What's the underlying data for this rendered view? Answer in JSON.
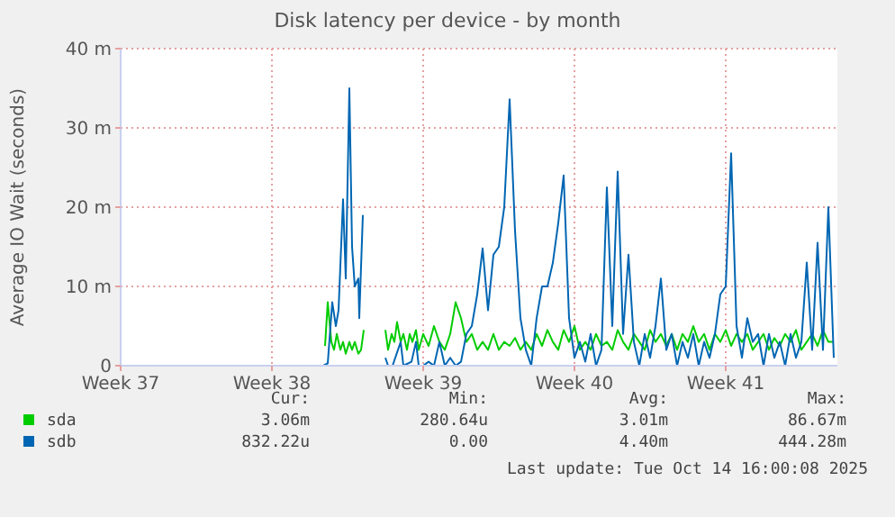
{
  "chart_data": {
    "type": "line",
    "title": "Disk latency per device - by month",
    "ylabel": "Average IO Wait (seconds)",
    "xlim": [
      "2025-09-08T00:00",
      "2025-10-11T04:00"
    ],
    "xticks": [
      {
        "value": "2025-09-08",
        "label": "Week 37"
      },
      {
        "value": "2025-09-15",
        "label": "Week 38"
      },
      {
        "value": "2025-09-22",
        "label": "Week 39"
      },
      {
        "value": "2025-09-29",
        "label": "Week 40"
      },
      {
        "value": "2025-10-06",
        "label": "Week 41"
      }
    ],
    "ylim": [
      0,
      40
    ],
    "yticks": [
      0,
      {
        "value": 10,
        "label": "10 m"
      },
      {
        "value": 20,
        "label": "20 m"
      },
      {
        "value": 30,
        "label": "30 m"
      },
      {
        "value": 40,
        "label": "40 m"
      }
    ],
    "grid": true,
    "legend": "bottom",
    "line_style": "solid",
    "marker": "none",
    "annotations": [
      "Cur:",
      "Min:",
      "Avg:",
      "Max:",
      "3.06m",
      "280.64u",
      "3.01m",
      "86.67m",
      "832.22u",
      "0.00",
      "4.40m",
      "444.28m",
      "Last update: Tue Oct 14 16:00:08 2025"
    ],
    "series": [
      {
        "name": "sda",
        "color": "#00cc00",
        "x": [
          "2025-09-17T11:00",
          "2025-09-17T14:00",
          "2025-09-17T18:00",
          "2025-09-17T21:00",
          "2025-09-18T00:00",
          "2025-09-18T04:00",
          "2025-09-18T07:00",
          "2025-09-18T10:00",
          "2025-09-18T14:00",
          "2025-09-18T17:00",
          "2025-09-18T20:00",
          "2025-09-19T00:00",
          "2025-09-19T03:00",
          "2025-09-19T06:00",
          "2025-09-19T18:00",
          "2025-09-20T06:00",
          "2025-09-20T09:00",
          "2025-09-20T13:00",
          "2025-09-20T16:00",
          "2025-09-20T19:00",
          "2025-09-20T23:00",
          "2025-09-21T02:00",
          "2025-09-21T06:00",
          "2025-09-21T09:00",
          "2025-09-21T12:00",
          "2025-09-21T16:00",
          "2025-09-21T19:00",
          "2025-09-22T00:00",
          "2025-09-22T06:00",
          "2025-09-22T12:00",
          "2025-09-22T18:00",
          "2025-09-23T00:00",
          "2025-09-23T06:00",
          "2025-09-23T12:00",
          "2025-09-23T18:00",
          "2025-09-24T00:00",
          "2025-09-24T06:00",
          "2025-09-24T12:00",
          "2025-09-24T18:00",
          "2025-09-25T00:00",
          "2025-09-25T06:00",
          "2025-09-25T12:00",
          "2025-09-25T18:00",
          "2025-09-26T00:00",
          "2025-09-26T06:00",
          "2025-09-26T12:00",
          "2025-09-26T18:00",
          "2025-09-27T00:00",
          "2025-09-27T06:00",
          "2025-09-27T12:00",
          "2025-09-27T18:00",
          "2025-09-28T00:00",
          "2025-09-28T06:00",
          "2025-09-28T12:00",
          "2025-09-28T18:00",
          "2025-09-29T00:00",
          "2025-09-29T06:00",
          "2025-09-29T12:00",
          "2025-09-29T18:00",
          "2025-09-30T00:00",
          "2025-09-30T06:00",
          "2025-09-30T12:00",
          "2025-09-30T18:00",
          "2025-10-01T00:00",
          "2025-10-01T06:00",
          "2025-10-01T12:00",
          "2025-10-01T18:00",
          "2025-10-02T00:00",
          "2025-10-02T06:00",
          "2025-10-02T12:00",
          "2025-10-02T18:00",
          "2025-10-03T00:00",
          "2025-10-03T06:00",
          "2025-10-03T12:00",
          "2025-10-03T18:00",
          "2025-10-04T00:00",
          "2025-10-04T06:00",
          "2025-10-04T12:00",
          "2025-10-04T18:00",
          "2025-10-05T00:00",
          "2025-10-05T06:00",
          "2025-10-05T12:00",
          "2025-10-05T18:00",
          "2025-10-06T00:00",
          "2025-10-06T06:00",
          "2025-10-06T12:00",
          "2025-10-06T18:00",
          "2025-10-07T00:00",
          "2025-10-07T06:00",
          "2025-10-07T12:00",
          "2025-10-07T18:00",
          "2025-10-08T00:00",
          "2025-10-08T06:00",
          "2025-10-08T12:00",
          "2025-10-08T18:00",
          "2025-10-09T00:00",
          "2025-10-09T06:00",
          "2025-10-09T12:00",
          "2025-10-09T18:00",
          "2025-10-10T00:00",
          "2025-10-10T06:00",
          "2025-10-10T12:00",
          "2025-10-10T18:00",
          "2025-10-11T00:00"
        ],
        "values": [
          2.5,
          8,
          3,
          2,
          4,
          2,
          3,
          1.5,
          3,
          2,
          3,
          1.5,
          2,
          4.5,
          null,
          4.5,
          2,
          4,
          3,
          5.5,
          3,
          4,
          2,
          4,
          3,
          4.5,
          2,
          4,
          2.5,
          5,
          3,
          2,
          4,
          8,
          6,
          3,
          4,
          2,
          3,
          2,
          4,
          2,
          3,
          2.5,
          3.5,
          2,
          3,
          2,
          4,
          2.5,
          4.5,
          3,
          2,
          4.5,
          3,
          5,
          2,
          3,
          2,
          4,
          2.5,
          3,
          2,
          4.5,
          3,
          2,
          4,
          3,
          2,
          4.5,
          3,
          4,
          2.5,
          4,
          2,
          4,
          3,
          5,
          3,
          4,
          2,
          4,
          3,
          4.5,
          2.5,
          4,
          3,
          4,
          2,
          3,
          4,
          2,
          3.5,
          2.5,
          4,
          3,
          4.5,
          2,
          3,
          4,
          2.5,
          4.5,
          3,
          3
        ]
      },
      {
        "name": "sdb",
        "color": "#0066b3",
        "x": [
          "2025-09-17T09:00",
          "2025-09-17T14:00",
          "2025-09-17T19:00",
          "2025-09-17T23:00",
          "2025-09-18T02:00",
          "2025-09-18T07:00",
          "2025-09-18T10:00",
          "2025-09-18T14:00",
          "2025-09-18T17:00",
          "2025-09-18T20:00",
          "2025-09-19T00:00",
          "2025-09-19T01:00",
          "2025-09-19T05:00",
          "2025-09-19T18:00",
          "2025-09-20T06:00",
          "2025-09-20T09:00",
          "2025-09-20T14:00",
          "2025-09-20T23:00",
          "2025-09-21T02:00",
          "2025-09-21T11:00",
          "2025-09-21T16:00",
          "2025-09-21T19:00",
          "2025-09-22T00:00",
          "2025-09-22T06:00",
          "2025-09-22T12:00",
          "2025-09-22T18:00",
          "2025-09-23T00:00",
          "2025-09-23T06:00",
          "2025-09-23T12:00",
          "2025-09-23T18:00",
          "2025-09-24T00:00",
          "2025-09-24T06:00",
          "2025-09-24T12:00",
          "2025-09-24T18:00",
          "2025-09-25T00:00",
          "2025-09-25T06:00",
          "2025-09-25T12:00",
          "2025-09-25T18:00",
          "2025-09-26T00:00",
          "2025-09-26T06:00",
          "2025-09-26T12:00",
          "2025-09-26T18:00",
          "2025-09-27T00:00",
          "2025-09-27T06:00",
          "2025-09-27T12:00",
          "2025-09-27T18:00",
          "2025-09-28T00:00",
          "2025-09-28T06:00",
          "2025-09-28T12:00",
          "2025-09-28T18:00",
          "2025-09-29T00:00",
          "2025-09-29T06:00",
          "2025-09-29T12:00",
          "2025-09-29T18:00",
          "2025-09-30T00:00",
          "2025-09-30T06:00",
          "2025-09-30T12:00",
          "2025-09-30T18:00",
          "2025-10-01T00:00",
          "2025-10-01T06:00",
          "2025-10-01T12:00",
          "2025-10-01T18:00",
          "2025-10-02T00:00",
          "2025-10-02T06:00",
          "2025-10-02T12:00",
          "2025-10-02T18:00",
          "2025-10-03T00:00",
          "2025-10-03T06:00",
          "2025-10-03T12:00",
          "2025-10-03T18:00",
          "2025-10-04T00:00",
          "2025-10-04T06:00",
          "2025-10-04T12:00",
          "2025-10-04T18:00",
          "2025-10-05T00:00",
          "2025-10-05T06:00",
          "2025-10-05T12:00",
          "2025-10-05T18:00",
          "2025-10-06T00:00",
          "2025-10-06T06:00",
          "2025-10-06T12:00",
          "2025-10-06T18:00",
          "2025-10-07T00:00",
          "2025-10-07T06:00",
          "2025-10-07T12:00",
          "2025-10-07T18:00",
          "2025-10-08T00:00",
          "2025-10-08T06:00",
          "2025-10-08T12:00",
          "2025-10-08T18:00",
          "2025-10-09T00:00",
          "2025-10-09T06:00",
          "2025-10-09T12:00",
          "2025-10-09T18:00",
          "2025-10-10T00:00",
          "2025-10-10T06:00",
          "2025-10-10T12:00",
          "2025-10-10T18:00",
          "2025-10-11T00:00"
        ],
        "values": [
          0,
          0.3,
          8,
          5,
          7,
          21,
          11,
          35,
          15,
          10,
          11,
          6,
          19,
          null,
          1,
          0,
          0,
          3,
          0,
          0.5,
          3,
          0,
          0,
          0.5,
          0,
          3,
          0,
          1,
          0,
          0.5,
          4,
          5,
          9,
          14.8,
          7,
          14,
          15,
          20,
          33.6,
          17,
          6,
          2,
          0,
          6,
          10,
          10,
          13,
          18,
          24,
          6,
          1,
          3,
          0.5,
          4,
          0,
          2,
          22.5,
          5,
          24.5,
          4,
          14,
          3,
          0,
          4,
          1,
          5,
          11,
          2,
          4,
          0,
          3,
          1,
          4,
          0,
          3,
          1,
          4,
          9,
          10,
          26.8,
          5,
          1,
          6,
          3,
          4,
          0,
          4,
          1,
          3,
          0,
          4,
          1,
          3,
          13,
          2,
          15.5,
          2,
          20,
          1
        ]
      }
    ]
  }
}
